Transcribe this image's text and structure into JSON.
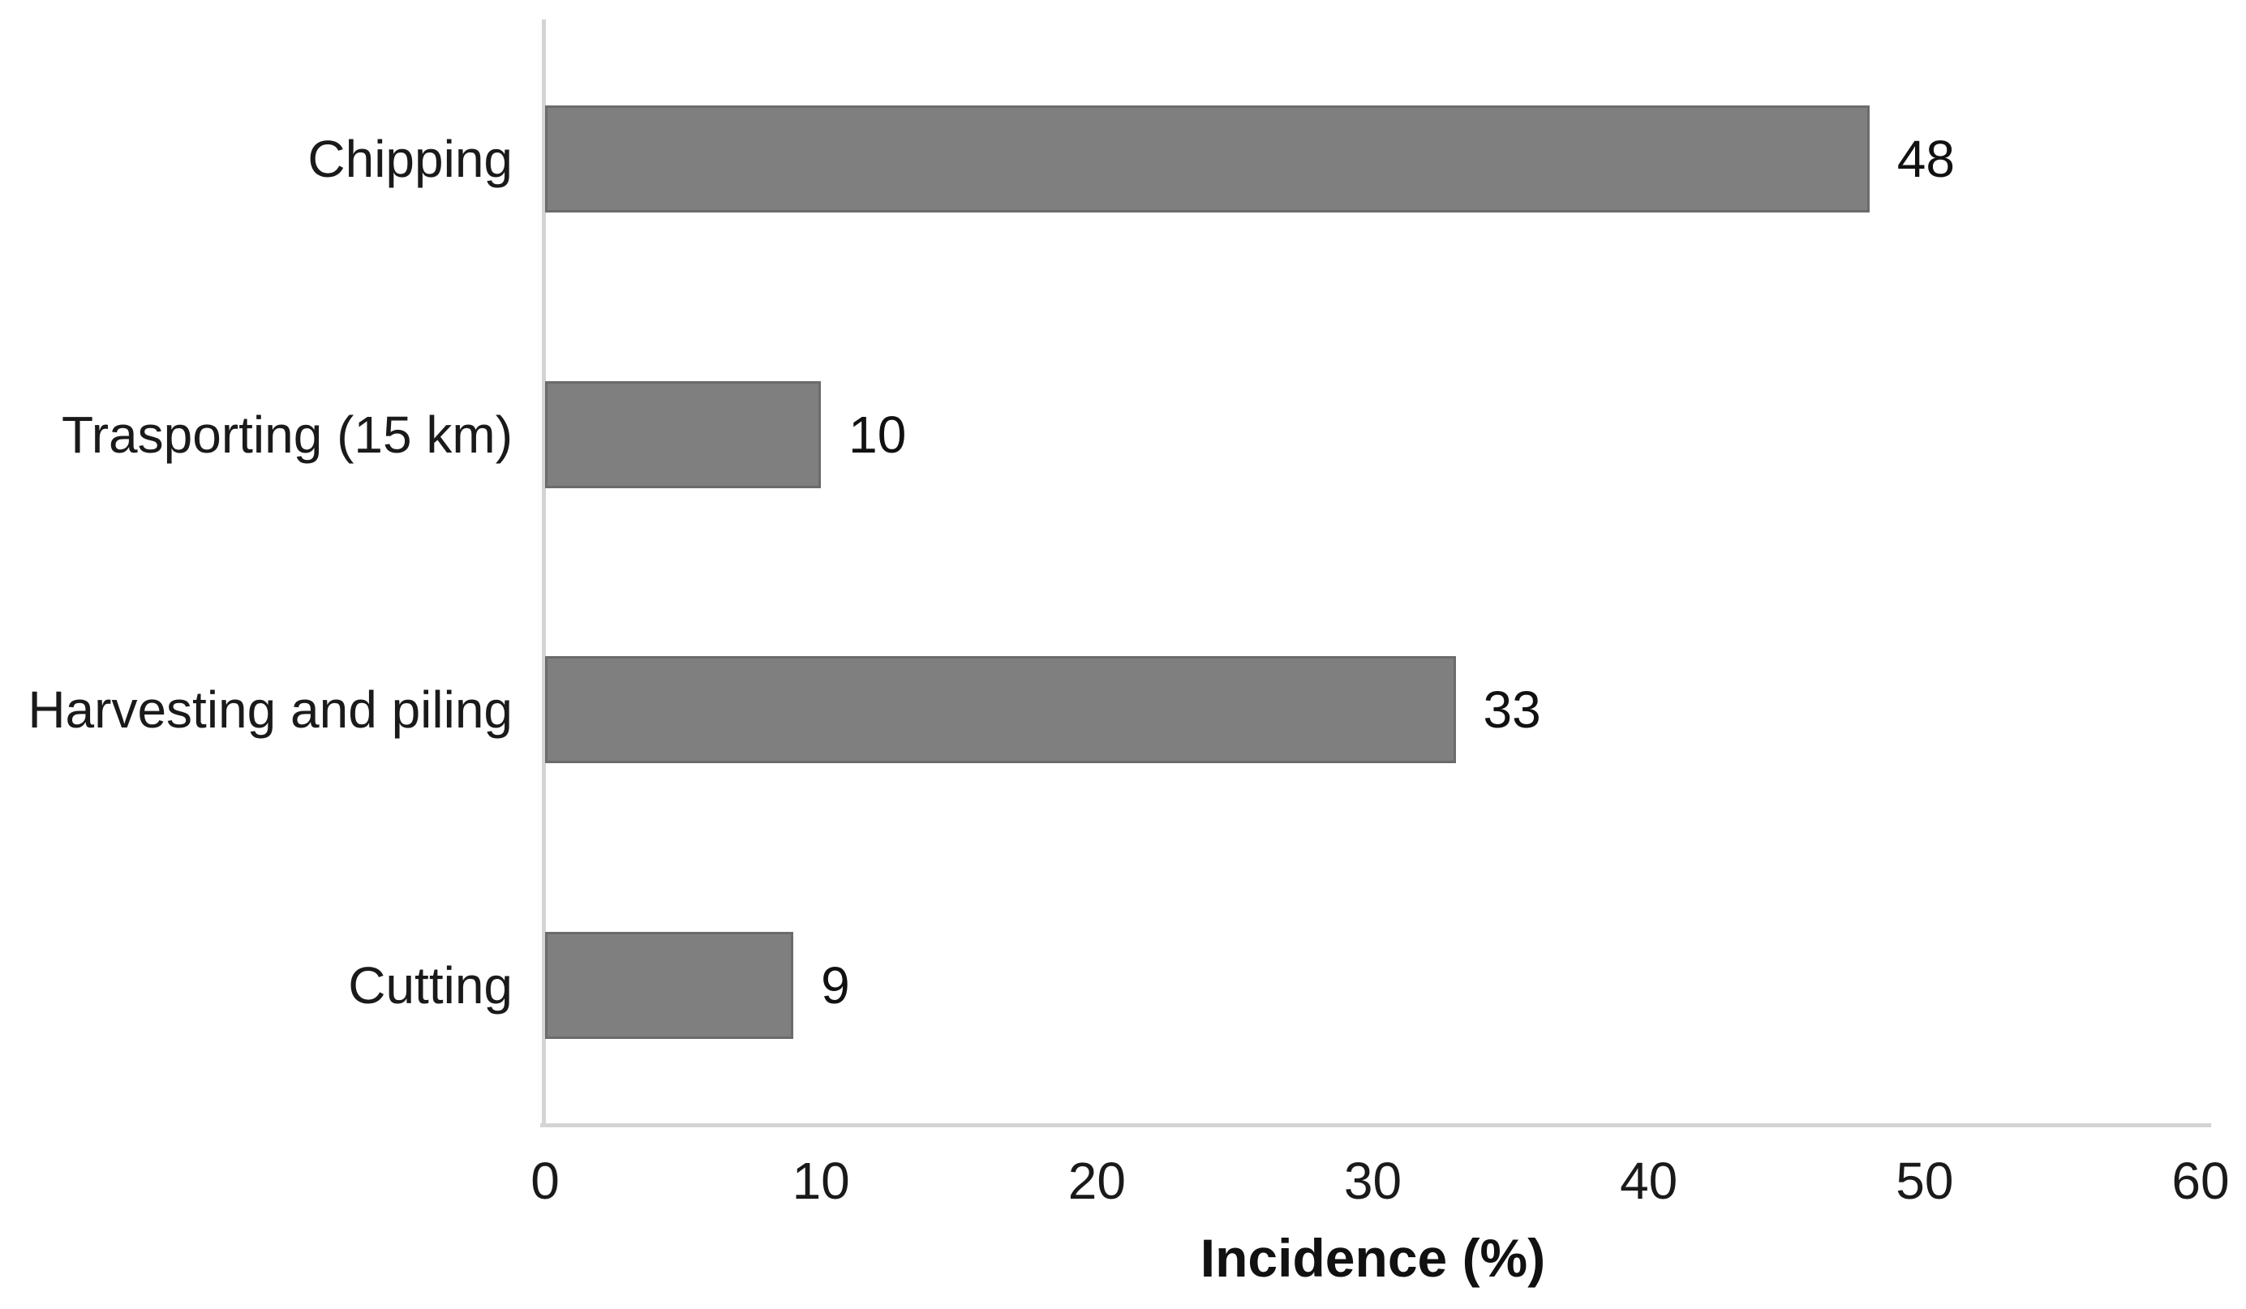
{
  "chart_data": {
    "type": "bar",
    "orientation": "horizontal",
    "categories": [
      "Chipping",
      "Trasporting (15 km)",
      "Harvesting and piling",
      "Cutting"
    ],
    "values": [
      48,
      10,
      33,
      9
    ],
    "data_labels": [
      "48",
      "10",
      "33",
      "9"
    ],
    "title": "",
    "xlabel": "Incidence (%)",
    "ylabel": "",
    "xlim": [
      0,
      60
    ],
    "xticks": [
      0,
      10,
      20,
      30,
      40,
      50,
      60
    ],
    "grid": false,
    "legend": false,
    "colors": {
      "bar_fill": "#7f7f7f",
      "bar_border": "#6b6b6b",
      "axis_line": "#d4d4d4",
      "text": "#1a1a1a",
      "background": "#ffffff"
    }
  }
}
